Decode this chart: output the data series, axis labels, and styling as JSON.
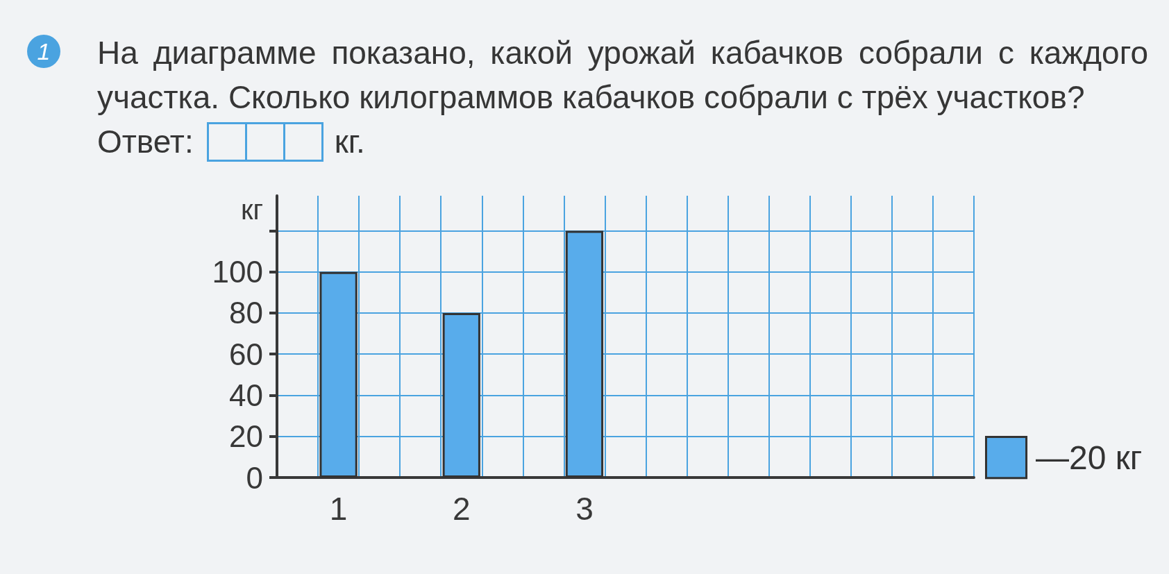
{
  "chart_data": {
    "type": "bar",
    "title": "На диаграмме показано, какой урожай кабачков собрали с каждого участка. Сколько килограммов кабачков собрали с трёх участков?",
    "ylabel": "кг",
    "categories": [
      null,
      "1",
      null,
      null,
      "2",
      null,
      null,
      "3",
      null,
      null,
      null,
      null,
      null,
      null,
      null,
      null,
      null
    ],
    "values": [
      null,
      100,
      null,
      null,
      80,
      null,
      null,
      120,
      null,
      null,
      null,
      null,
      null,
      null,
      null,
      null,
      null
    ],
    "color": "#58aceb",
    "ylim": [
      0,
      137
    ],
    "yticks": [
      0,
      20,
      40,
      60,
      80,
      100,
      {
        "value": 120,
        "label": null
      }
    ],
    "grid": true,
    "annotations": [
      "1",
      "Ответ:",
      "кг.",
      "—20 кг"
    ]
  }
}
